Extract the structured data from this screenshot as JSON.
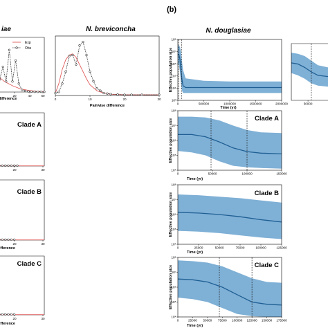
{
  "panel_label": "(b)",
  "titles": {
    "cut_left": "iae",
    "breviconcha": "N. breviconcha",
    "douglasiae": "N. douglasiae"
  },
  "legend": {
    "exp": "Exp",
    "obs": "Obs"
  },
  "labels": {
    "pairwise": "Pairwise difference",
    "difference_cut": "difference",
    "difference_cut2": "ifference",
    "time": "Time (yr)",
    "pop": "Effective population size"
  },
  "colors": {
    "band": "#7fb0d6",
    "median": "#1f5f93",
    "exp": "#e05a5a",
    "obs": "#333333",
    "bg": "#ffffff"
  },
  "chart_data": [
    {
      "id": "mismatch-top-cut",
      "type": "line",
      "title": "iae",
      "xlabel": "difference",
      "ylabel": "",
      "x_ticks": [
        "20",
        "40",
        "60"
      ],
      "series": [
        {
          "name": "Exp",
          "x": [
            0,
            10,
            20,
            30,
            40,
            50,
            60
          ],
          "y": [
            0.08,
            0.05,
            0.03,
            0.015,
            0.008,
            0.004,
            0.002
          ]
        },
        {
          "name": "Obs",
          "x": [
            0,
            4,
            8,
            12,
            16,
            20,
            24,
            28,
            32,
            36,
            40,
            44,
            48,
            52,
            56,
            60
          ],
          "y": [
            0.02,
            0.06,
            0.12,
            0.05,
            0.2,
            0.05,
            0.15,
            0.04,
            0.01,
            0.005,
            0.003,
            0.002,
            0.001,
            0.001,
            0.001,
            0.001
          ]
        }
      ]
    },
    {
      "id": "mismatch-breviconcha",
      "type": "line",
      "title": "N. breviconcha",
      "xlabel": "Pairwise difference",
      "ylabel": "",
      "x_ticks": [
        "0",
        "10",
        "20",
        "30"
      ],
      "xlim": [
        0,
        30
      ],
      "series": [
        {
          "name": "Exp",
          "x": [
            0,
            1,
            2,
            3,
            4,
            5,
            6,
            7,
            8,
            9,
            10,
            12,
            14,
            16,
            18,
            20,
            25,
            30
          ],
          "y": [
            0.01,
            0.05,
            0.11,
            0.15,
            0.17,
            0.175,
            0.16,
            0.13,
            0.1,
            0.07,
            0.045,
            0.02,
            0.01,
            0.005,
            0.004,
            0.003,
            0.003,
            0.003
          ]
        },
        {
          "name": "Obs",
          "x": [
            0,
            1,
            2,
            3,
            4,
            5,
            6,
            7,
            8,
            9,
            10,
            11,
            12,
            13,
            14,
            15,
            16,
            18,
            20,
            22,
            25,
            30
          ],
          "y": [
            0.01,
            0.015,
            0.05,
            0.1,
            0.165,
            0.17,
            0.13,
            0.21,
            0.225,
            0.17,
            0.1,
            0.06,
            0.03,
            0.02,
            0.01,
            0.008,
            0.006,
            0.004,
            0.003,
            0.003,
            0.003,
            0.003
          ]
        }
      ]
    },
    {
      "id": "mismatch-clade-a",
      "type": "line",
      "title": "Clade A",
      "xlabel": "",
      "ylabel": "",
      "x_ticks": [
        "20",
        "30"
      ],
      "series": [
        {
          "name": "Exp",
          "x": [
            0,
            30
          ],
          "y": [
            0.001,
            0.001
          ]
        },
        {
          "name": "Obs",
          "x": [
            0,
            2,
            4,
            6,
            8,
            10,
            12
          ],
          "y": [
            0.002,
            0.002,
            0.002,
            0.002,
            0.002,
            0.002,
            0.002
          ]
        }
      ]
    },
    {
      "id": "mismatch-clade-b",
      "type": "line",
      "title": "Clade B",
      "xlabel": "ifference",
      "ylabel": "",
      "x_ticks": [
        "20",
        "30"
      ],
      "series": [
        {
          "name": "Exp",
          "x": [
            0,
            30
          ],
          "y": [
            0.001,
            0.001
          ]
        },
        {
          "name": "Obs",
          "x": [
            0,
            2,
            4,
            6,
            8,
            10
          ],
          "y": [
            0.002,
            0.002,
            0.002,
            0.002,
            0.002,
            0.002
          ]
        }
      ]
    },
    {
      "id": "mismatch-clade-c",
      "type": "line",
      "title": "Clade C",
      "xlabel": "ifference",
      "ylabel": "",
      "x_ticks": [
        "20",
        "30"
      ],
      "series": [
        {
          "name": "Exp",
          "x": [
            0,
            30
          ],
          "y": [
            0.001,
            0.001
          ]
        },
        {
          "name": "Obs",
          "x": [
            0,
            2,
            4,
            6,
            8,
            10
          ],
          "y": [
            0.002,
            0.002,
            0.002,
            0.002,
            0.002,
            0.002
          ]
        }
      ]
    },
    {
      "id": "bsp-douglasiae",
      "type": "area",
      "title": "N. douglasiae",
      "xlabel": "Time (yr)",
      "ylabel": "Effective population size",
      "xlim": [
        0,
        2000000
      ],
      "y_log": true,
      "ylim_exp": [
        3,
        8
      ],
      "x_ticks": [
        0,
        500000,
        1000000,
        1500000,
        2000000
      ],
      "y_ticks": [
        "10³",
        "10⁴",
        "10⁵",
        "10⁶",
        "10⁷",
        "10⁸"
      ],
      "vlines": [
        20000,
        70000
      ],
      "x": [
        0,
        20000,
        40000,
        60000,
        80000,
        100000,
        150000,
        500000,
        1000000,
        1500000,
        2000000
      ],
      "median": [
        6.8,
        6.75,
        6.4,
        5.4,
        4.7,
        4.2,
        4.05,
        4.05,
        4.05,
        4.05,
        4.05
      ],
      "upper": [
        7.5,
        7.5,
        7.4,
        7.0,
        6.2,
        5.5,
        4.8,
        4.6,
        4.55,
        4.55,
        4.55
      ],
      "lower": [
        6.0,
        5.9,
        5.4,
        4.4,
        3.8,
        3.6,
        3.6,
        3.6,
        3.6,
        3.6,
        3.6
      ]
    },
    {
      "id": "bsp-douglasiae-cut",
      "type": "area",
      "title": "",
      "xlabel": "",
      "ylabel": "",
      "xlim": [
        0,
        110000
      ],
      "y_log": true,
      "ylim_exp": [
        3,
        8
      ],
      "x_ticks": [
        50000
      ],
      "y_ticks": [],
      "vlines": [
        60000
      ],
      "x": [
        0,
        20000,
        40000,
        60000,
        80000,
        110000
      ],
      "median": [
        6.3,
        6.2,
        5.9,
        5.5,
        5.2,
        5.1
      ],
      "upper": [
        7.2,
        7.1,
        6.9,
        6.5,
        6.1,
        5.9
      ],
      "lower": [
        5.4,
        5.2,
        4.9,
        4.5,
        4.3,
        4.2
      ]
    },
    {
      "id": "bsp-clade-a",
      "type": "area",
      "title": "Clade A",
      "xlabel": "Time (yr)",
      "ylabel": "Effective population size",
      "xlim": [
        0,
        150000
      ],
      "y_log": true,
      "ylim_exp": [
        4,
        8
      ],
      "x_ticks": [
        0,
        50000,
        100000,
        150000
      ],
      "y_ticks": [
        "10⁴",
        "10⁵",
        "10⁶",
        "10⁷",
        "10⁸"
      ],
      "vlines": [
        48000,
        100000
      ],
      "x": [
        0,
        20000,
        40000,
        60000,
        80000,
        100000,
        120000,
        150000
      ],
      "median": [
        6.4,
        6.4,
        6.25,
        5.9,
        5.5,
        5.25,
        5.15,
        5.1
      ],
      "upper": [
        7.6,
        7.6,
        7.55,
        7.35,
        7.0,
        6.7,
        6.55,
        6.5
      ],
      "lower": [
        5.3,
        5.2,
        5.0,
        4.6,
        4.3,
        4.2,
        4.15,
        4.1
      ]
    },
    {
      "id": "bsp-clade-b",
      "type": "area",
      "title": "Clade B",
      "xlabel": "Time (yr)",
      "ylabel": "Effective population size",
      "xlim": [
        0,
        125000
      ],
      "y_log": true,
      "ylim_exp": [
        4,
        8
      ],
      "x_ticks": [
        0,
        25000,
        50000,
        75000,
        100000,
        125000
      ],
      "y_ticks": [
        "10⁴",
        "10⁵",
        "10⁶",
        "10⁷",
        "10⁸"
      ],
      "vlines": [],
      "x": [
        0,
        25000,
        50000,
        75000,
        100000,
        125000
      ],
      "median": [
        6.15,
        6.1,
        6.0,
        5.85,
        5.65,
        5.5
      ],
      "upper": [
        7.35,
        7.3,
        7.2,
        7.1,
        6.95,
        6.8
      ],
      "lower": [
        4.9,
        4.85,
        4.75,
        4.6,
        4.45,
        4.35
      ]
    },
    {
      "id": "bsp-clade-c",
      "type": "area",
      "title": "Clade C",
      "xlabel": "Time (yr)",
      "ylabel": "Effective population size",
      "xlim": [
        0,
        175000
      ],
      "y_log": true,
      "ylim_exp": [
        4,
        8
      ],
      "x_ticks": [
        0,
        25000,
        50000,
        75000,
        100000,
        125000,
        150000,
        175000
      ],
      "y_ticks": [
        "10⁴",
        "10⁵",
        "10⁶",
        "10⁷",
        "10⁸"
      ],
      "vlines": [
        70000,
        125000
      ],
      "x": [
        0,
        25000,
        50000,
        75000,
        100000,
        125000,
        150000,
        175000
      ],
      "median": [
        6.55,
        6.5,
        6.35,
        6.0,
        5.5,
        5.0,
        4.85,
        4.8
      ],
      "upper": [
        7.8,
        7.75,
        7.65,
        7.4,
        7.0,
        6.6,
        6.35,
        6.3
      ],
      "lower": [
        5.3,
        5.2,
        5.0,
        4.6,
        4.2,
        4.05,
        4.0,
        4.0
      ]
    }
  ]
}
